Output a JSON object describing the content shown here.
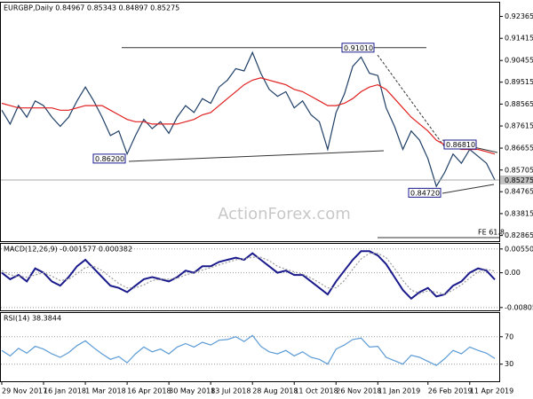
{
  "chart_data": [
    {
      "type": "line",
      "title": "EURGBP,Daily  0.84967 0.85343 0.84897 0.85275",
      "xlim": [
        0,
        59
      ],
      "ylim": [
        0.8262,
        0.93
      ],
      "yticks": [
        0.92365,
        0.91415,
        0.90455,
        0.89515,
        0.88565,
        0.87615,
        0.86655,
        0.85705,
        0.84765,
        0.83815,
        0.82865
      ],
      "series": [
        {
          "color": "#1f3f66",
          "values": [
            0.883,
            0.877,
            0.885,
            0.88,
            0.887,
            0.885,
            0.88,
            0.876,
            0.88,
            0.887,
            0.893,
            0.887,
            0.88,
            0.872,
            0.874,
            0.864,
            0.872,
            0.879,
            0.875,
            0.878,
            0.873,
            0.88,
            0.885,
            0.882,
            0.888,
            0.886,
            0.893,
            0.896,
            0.901,
            0.9,
            0.908,
            0.899,
            0.892,
            0.889,
            0.891,
            0.884,
            0.887,
            0.881,
            0.878,
            0.866,
            0.882,
            0.89,
            0.902,
            0.906,
            0.899,
            0.898,
            0.884,
            0.876,
            0.866,
            0.874,
            0.87,
            0.862,
            0.85,
            0.856,
            0.864,
            0.86,
            0.866,
            0.863,
            0.86,
            0.85275
          ]
        },
        {
          "color": "#e02020",
          "values": [
            0.886,
            0.885,
            0.884,
            0.884,
            0.884,
            0.884,
            0.884,
            0.883,
            0.883,
            0.884,
            0.885,
            0.885,
            0.885,
            0.883,
            0.881,
            0.879,
            0.878,
            0.878,
            0.877,
            0.877,
            0.877,
            0.877,
            0.878,
            0.879,
            0.881,
            0.882,
            0.885,
            0.888,
            0.891,
            0.894,
            0.896,
            0.897,
            0.896,
            0.895,
            0.894,
            0.892,
            0.891,
            0.889,
            0.887,
            0.885,
            0.885,
            0.886,
            0.888,
            0.891,
            0.893,
            0.894,
            0.892,
            0.888,
            0.884,
            0.88,
            0.877,
            0.874,
            0.87,
            0.868,
            0.867,
            0.866,
            0.866,
            0.866,
            0.865,
            0.864
          ]
        }
      ],
      "levels": [
        {
          "value": 0.9101,
          "label": "0.91010"
        },
        {
          "value": 0.862,
          "label": "0.86200"
        },
        {
          "value": 0.8681,
          "label": "0.86810"
        },
        {
          "value": 0.8472,
          "label": "0.84720"
        }
      ],
      "current": {
        "value": 0.85275,
        "label": "0.85275"
      },
      "fe_label": "FE 61.8",
      "watermark": "ActionForex.com"
    },
    {
      "type": "line",
      "title": "MACD(12,26,9) -0.001577 0.000382",
      "xlim": [
        0,
        59
      ],
      "ylim": [
        -0.0087,
        0.0069
      ],
      "yticks": [
        {
          "value": 0.005504,
          "label": "0.005504"
        },
        {
          "value": 0,
          "label": "0.00"
        },
        {
          "value": -0.00805,
          "label": "-0.00805"
        }
      ],
      "series": [
        {
          "color": "#1a1a8c",
          "values": [
            0,
            -0.0015,
            -0.0005,
            -0.002,
            0.001,
            0,
            -0.002,
            -0.003,
            -0.001,
            0.0015,
            0.003,
            0.001,
            -0.001,
            -0.003,
            -0.0035,
            -0.0045,
            -0.003,
            -0.0015,
            -0.001,
            -0.0015,
            -0.002,
            -0.001,
            0.0005,
            0,
            0.0015,
            0.0015,
            0.0025,
            0.003,
            0.0035,
            0.003,
            0.0045,
            0.003,
            0.0015,
            0,
            0.0005,
            -0.0005,
            -0.0005,
            -0.002,
            -0.0035,
            -0.005,
            -0.002,
            0.0005,
            0.003,
            0.005,
            0.005,
            0.004,
            0.002,
            -0.001,
            -0.004,
            -0.006,
            -0.0045,
            -0.0035,
            -0.0055,
            -0.005,
            -0.003,
            -0.002,
            0,
            0.001,
            0.0005,
            -0.001577
          ]
        },
        {
          "color": "#9a9a9a",
          "values": [
            0.0005,
            -0.0005,
            -0.0008,
            -0.001,
            -0.0005,
            0,
            -0.0008,
            -0.0018,
            -0.0015,
            -0.0002,
            0.0012,
            0.0015,
            0.0005,
            -0.001,
            -0.0025,
            -0.0035,
            -0.0035,
            -0.0028,
            -0.0018,
            -0.0015,
            -0.0015,
            -0.0013,
            -0.0005,
            0,
            0.0006,
            0.0012,
            0.0018,
            0.0024,
            0.003,
            0.0032,
            0.0036,
            0.0036,
            0.0028,
            0.0015,
            0.0008,
            0.0002,
            -0.0003,
            -0.0012,
            -0.0023,
            -0.0035,
            -0.0035,
            -0.0018,
            0.0008,
            0.0032,
            0.0045,
            0.0045,
            0.0035,
            0.001,
            -0.0018,
            -0.004,
            -0.0048,
            -0.0042,
            -0.0045,
            -0.005,
            -0.004,
            -0.0028,
            -0.0012,
            0.0002,
            0.0008,
            0.000382
          ]
        }
      ]
    },
    {
      "type": "line",
      "title": "RSI(14) 38.3844",
      "xlim": [
        0,
        59
      ],
      "ylim": [
        5,
        106
      ],
      "yticks": [
        70,
        30
      ],
      "xticks": [
        {
          "value": 0,
          "label": "29 Nov 2017"
        },
        {
          "value": 5,
          "label": "16 Jan 2018"
        },
        {
          "value": 10,
          "label": "1 Mar 2018"
        },
        {
          "value": 15,
          "label": "16 Apr 2018"
        },
        {
          "value": 20,
          "label": "30 May 2018"
        },
        {
          "value": 25,
          "label": "13 Jul 2018"
        },
        {
          "value": 30,
          "label": "28 Aug 2018"
        },
        {
          "value": 35,
          "label": "11 Oct 2018"
        },
        {
          "value": 40,
          "label": "26 Nov 2018"
        },
        {
          "value": 45,
          "label": "11 Jan 2019"
        },
        {
          "value": 51,
          "label": "26 Feb 2019"
        },
        {
          "value": 56,
          "label": "11 Apr 2019"
        }
      ],
      "series": [
        {
          "color": "#5b9bd5",
          "values": [
            50,
            42,
            53,
            46,
            56,
            52,
            45,
            40,
            47,
            57,
            64,
            54,
            45,
            37,
            41,
            32,
            45,
            55,
            48,
            52,
            45,
            55,
            60,
            55,
            62,
            58,
            65,
            66,
            70,
            63,
            72,
            56,
            48,
            45,
            50,
            42,
            48,
            40,
            37,
            30,
            52,
            58,
            66,
            68,
            55,
            56,
            40,
            35,
            30,
            43,
            40,
            34,
            28,
            38,
            50,
            45,
            55,
            50,
            46,
            38.3844
          ]
        }
      ]
    }
  ]
}
